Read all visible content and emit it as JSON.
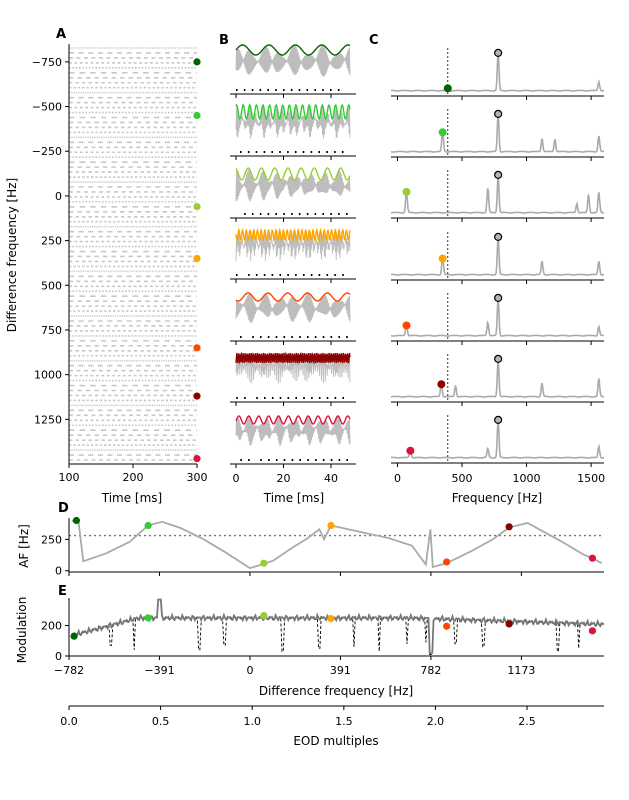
{
  "colors": {
    "trace": "#aaaaaa",
    "darkline": "#777777",
    "dots": [
      "#006400",
      "#32cd32",
      "#9acd32",
      "#ffa500",
      "#ff4500",
      "#8b0000",
      "#dc143c"
    ]
  },
  "panels": {
    "a": "A",
    "b": "B",
    "c": "C",
    "d": "D",
    "e": "E"
  },
  "labels": {
    "a_x": "Time [ms]",
    "a_y": "Difference frequency [Hz]",
    "b_x": "Time [ms]",
    "c_x": "Frequency [Hz]",
    "d_y": "AF [Hz]",
    "e_y": "Modulation",
    "e_x": "Difference frequency [Hz]",
    "eod_x": "EOD multiples"
  },
  "chart_data": [
    {
      "type": "heatmap",
      "panel": "A",
      "xlabel": "Time [ms]",
      "ylabel": "Difference frequency [Hz]",
      "xlim": [
        100,
        300
      ],
      "ylim": [
        1500,
        -850
      ],
      "xticks": [
        100,
        200,
        300
      ],
      "yticks": [
        -750,
        -500,
        -250,
        0,
        250,
        500,
        750,
        1000,
        1250
      ],
      "markers_df": [
        -750,
        -450,
        60,
        350,
        850,
        1120,
        1470
      ]
    },
    {
      "type": "line",
      "panel": "B",
      "xlabel": "Time [ms]",
      "xlim": [
        0,
        50
      ],
      "xticks": [
        0,
        20,
        40
      ],
      "traces": 7
    },
    {
      "type": "line",
      "panel": "C",
      "xlabel": "Frequency [Hz]",
      "xlim": [
        -50,
        1600
      ],
      "xticks": [
        0,
        500,
        1000,
        1500
      ],
      "eod_peak_hz": 780,
      "reference_line_hz": 390,
      "marker_x": [
        390,
        350,
        70,
        350,
        70,
        340,
        100
      ],
      "marker_y": [
        0.08,
        0.45,
        0.48,
        0.38,
        0.25,
        0.3,
        0.18
      ]
    },
    {
      "type": "line",
      "panel": "D",
      "ylabel": "AF [Hz]",
      "ylim": [
        -10,
        420
      ],
      "yticks": [
        0,
        250
      ],
      "reference_y": 280,
      "points": [
        [
          -750,
          400
        ],
        [
          -440,
          360
        ],
        [
          60,
          60
        ],
        [
          350,
          360
        ],
        [
          850,
          70
        ],
        [
          1120,
          350
        ],
        [
          1480,
          100
        ]
      ]
    },
    {
      "type": "line",
      "panel": "E",
      "xlabel": "Difference frequency [Hz]",
      "ylabel": "Modulation",
      "xlim": [
        -782,
        1530
      ],
      "ylim": [
        0,
        380
      ],
      "xticks": [
        -782,
        -391,
        0,
        391,
        782,
        1173
      ],
      "yticks": [
        0,
        200
      ],
      "points": [
        [
          -760,
          130
        ],
        [
          -440,
          250
        ],
        [
          60,
          265
        ],
        [
          350,
          245
        ],
        [
          850,
          195
        ],
        [
          1120,
          210
        ],
        [
          1480,
          165
        ]
      ]
    },
    {
      "type": "line",
      "panel": "EOD",
      "xlabel": "EOD multiples",
      "xlim": [
        0,
        2.92
      ],
      "xticks": [
        0.0,
        0.5,
        1.0,
        1.5,
        2.0,
        2.5
      ],
      "xticklabels": [
        "0.0",
        "0.5",
        "1.0",
        "1.5",
        "2.0",
        "2.5"
      ]
    }
  ]
}
